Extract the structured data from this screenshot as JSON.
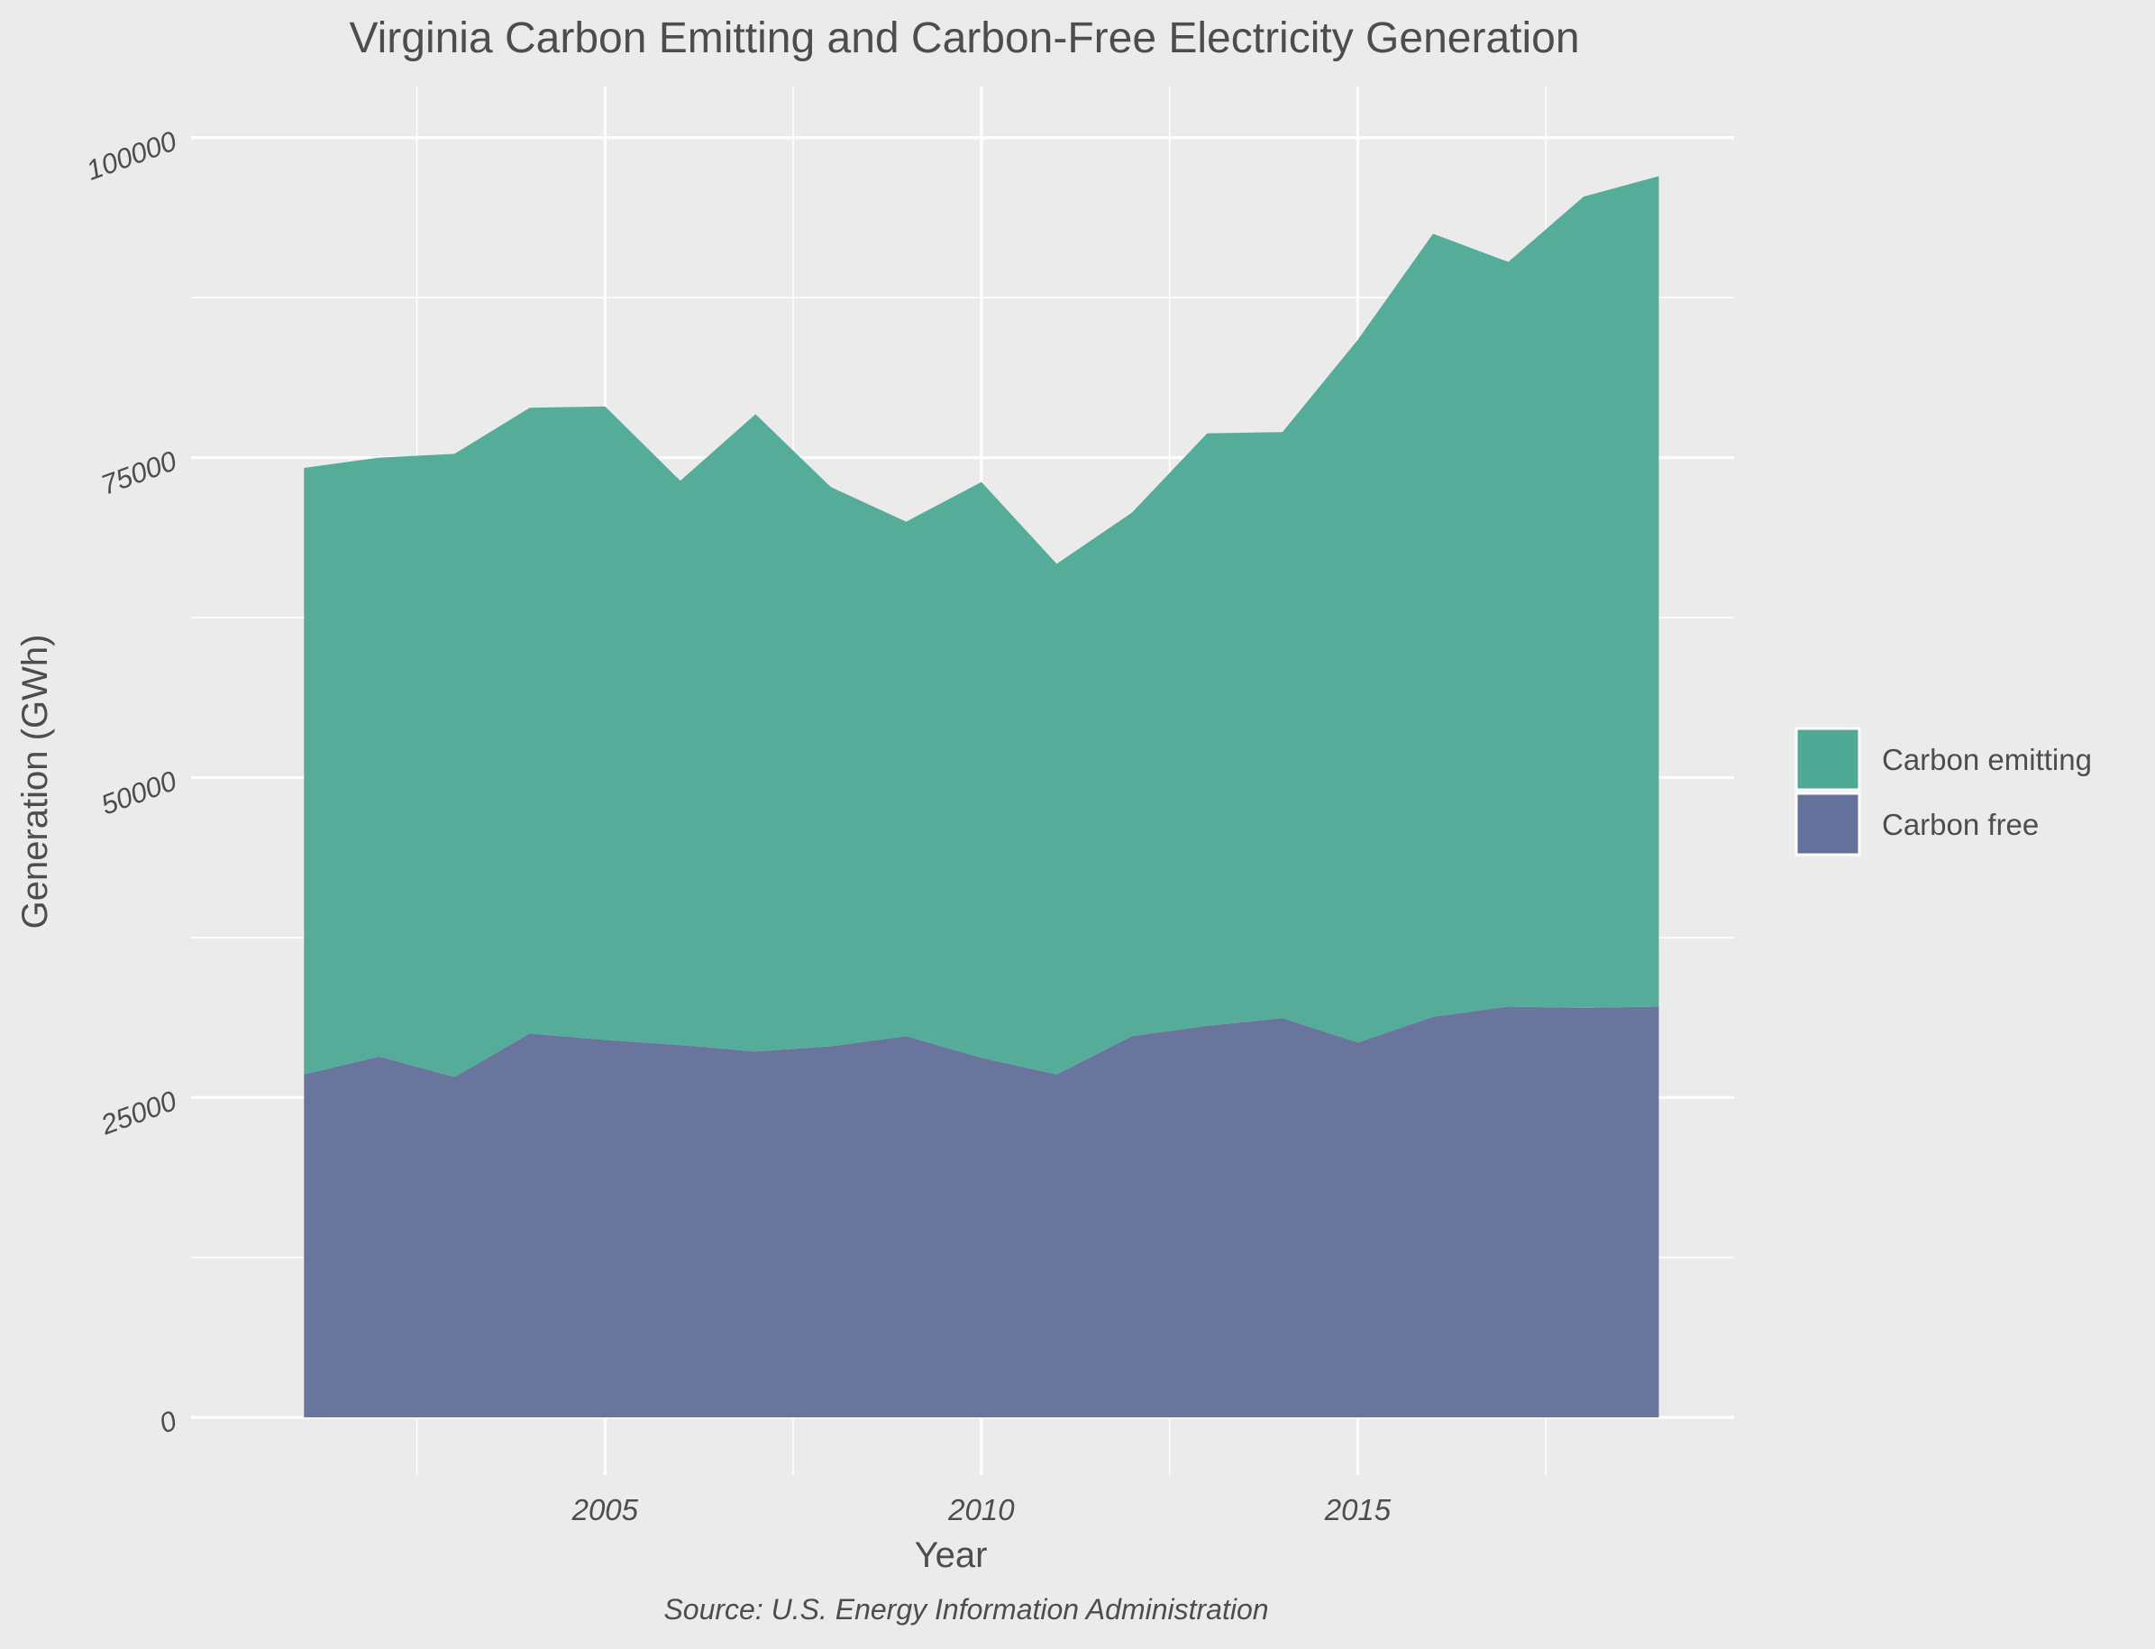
{
  "colors": {
    "background": "#ebebeb",
    "grid": "#ffffff",
    "text": "#4d4d4d",
    "carbon_emitting": "#50a995",
    "carbon_free": "#64719a"
  },
  "chart_data": {
    "type": "area",
    "stacked": true,
    "title": "Virginia Carbon Emitting and Carbon-Free Electricity Generation",
    "xlabel": "Year",
    "ylabel": "Generation (GWh)",
    "caption": "Source: U.S. Energy Information Administration",
    "x": [
      2001,
      2002,
      2003,
      2004,
      2005,
      2006,
      2007,
      2008,
      2009,
      2010,
      2011,
      2012,
      2013,
      2014,
      2015,
      2016,
      2017,
      2018,
      2019
    ],
    "series": [
      {
        "name": "Carbon free",
        "color": "#64719a",
        "values": [
          26800,
          28200,
          26600,
          30000,
          29500,
          29100,
          28600,
          29000,
          29800,
          28100,
          26800,
          29800,
          30600,
          31200,
          29300,
          31300,
          32100,
          32000,
          32100
        ]
      },
      {
        "name": "Carbon emitting",
        "color": "#50a995",
        "values": [
          47400,
          46800,
          48700,
          48900,
          49500,
          44100,
          49800,
          43700,
          40200,
          45000,
          39900,
          40900,
          46300,
          45800,
          54900,
          61200,
          58200,
          63400,
          64900
        ]
      }
    ],
    "xlim": [
      1999.5,
      2020.0
    ],
    "ylim": [
      -4500,
      104000
    ],
    "x_ticks": [
      2005,
      2010,
      2015
    ],
    "x_minor_ticks": [
      2002.5,
      2007.5,
      2012.5,
      2017.5
    ],
    "y_ticks": [
      0,
      25000,
      50000,
      75000,
      100000
    ],
    "y_minor_ticks": [
      12500,
      37500,
      62500,
      87500
    ],
    "legend_position": "right",
    "legend_order": [
      "Carbon emitting",
      "Carbon free"
    ],
    "grid": true
  }
}
